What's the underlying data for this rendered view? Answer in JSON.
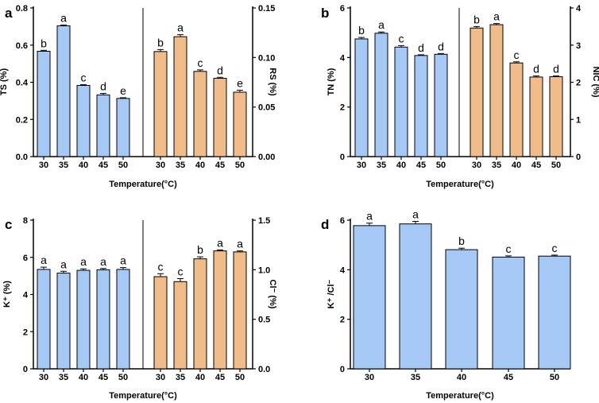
{
  "chart_data": [
    {
      "type": "bar",
      "panel_label": "a",
      "categories": [
        "30",
        "35",
        "40",
        "45",
        "50"
      ],
      "xlabel": "Temperature(°C)",
      "left": {
        "ylabel": "TS (%)",
        "ylim": [
          0,
          0.8
        ],
        "ticks": [
          "0.0",
          "0.2",
          "0.4",
          "0.6",
          "0.8"
        ],
        "tick_values": [
          0,
          0.2,
          0.4,
          0.6,
          0.8
        ],
        "values": [
          0.567,
          0.704,
          0.383,
          0.332,
          0.313
        ],
        "errors": [
          0.005,
          0.004,
          0.004,
          0.008,
          0.004
        ],
        "letters": [
          "b",
          "a",
          "c",
          "d",
          "e"
        ]
      },
      "right": {
        "ylabel": "RS (%)",
        "ylim": [
          0,
          0.15
        ],
        "ticks": [
          "0.00",
          "0.05",
          "0.10",
          "0.15"
        ],
        "tick_values": [
          0,
          0.05,
          0.1,
          0.15
        ],
        "values": [
          0.106,
          0.121,
          0.086,
          0.079,
          0.065
        ],
        "errors": [
          0.002,
          0.002,
          0.0015,
          0.001,
          0.002
        ],
        "letters": [
          "b",
          "a",
          "c",
          "d",
          "e"
        ]
      }
    },
    {
      "type": "bar",
      "panel_label": "b",
      "categories": [
        "30",
        "35",
        "40",
        "45",
        "50"
      ],
      "xlabel": "Temperature(°C)",
      "left": {
        "ylabel": "TN (%)",
        "ylim": [
          0,
          6
        ],
        "ticks": [
          "0",
          "2",
          "4",
          "6"
        ],
        "tick_values": [
          0,
          2,
          4,
          6
        ],
        "values": [
          4.75,
          4.98,
          4.42,
          4.08,
          4.13
        ],
        "errors": [
          0.06,
          0.05,
          0.06,
          0.03,
          0.03
        ],
        "letters": [
          "b",
          "a",
          "c",
          "d",
          "d"
        ]
      },
      "right": {
        "ylabel": "NIC (%)",
        "ylim": [
          0,
          4
        ],
        "ticks": [
          "0",
          "1",
          "2",
          "3",
          "4"
        ],
        "tick_values": [
          0,
          1,
          2,
          3,
          4
        ],
        "values": [
          3.46,
          3.55,
          2.52,
          2.14,
          2.15
        ],
        "errors": [
          0.04,
          0.03,
          0.03,
          0.03,
          0.02
        ],
        "letters": [
          "b",
          "a",
          "c",
          "d",
          "d"
        ]
      }
    },
    {
      "type": "bar",
      "panel_label": "c",
      "categories": [
        "30",
        "35",
        "40",
        "45",
        "50"
      ],
      "xlabel": "Temperature(°C)",
      "left": {
        "ylabel": "K⁺ (%)",
        "ylim": [
          0,
          8
        ],
        "ticks": [
          "0",
          "2",
          "4",
          "6",
          "8"
        ],
        "tick_values": [
          0,
          2,
          4,
          6,
          8
        ],
        "values": [
          5.35,
          5.15,
          5.3,
          5.33,
          5.35
        ],
        "errors": [
          0.12,
          0.1,
          0.08,
          0.07,
          0.1
        ],
        "letters": [
          "a",
          "a",
          "a",
          "a",
          "a"
        ]
      },
      "right": {
        "ylabel": "Cl⁻ (%)",
        "ylim": [
          0,
          1.5
        ],
        "ticks": [
          "0.0",
          "0.5",
          "1.0",
          "1.5"
        ],
        "tick_values": [
          0,
          0.5,
          1.0,
          1.5
        ],
        "values": [
          0.93,
          0.88,
          1.11,
          1.19,
          1.18
        ],
        "errors": [
          0.03,
          0.03,
          0.02,
          0.01,
          0.01
        ],
        "letters": [
          "c",
          "c",
          "b",
          "a",
          "a"
        ]
      }
    },
    {
      "type": "bar",
      "panel_label": "d",
      "categories": [
        "30",
        "35",
        "40",
        "45",
        "50"
      ],
      "xlabel": "Temperature(°C)",
      "left": {
        "ylabel": "K⁺ /Cl⁻",
        "ylim": [
          0,
          6
        ],
        "ticks": [
          "0",
          "2",
          "4",
          "6"
        ],
        "tick_values": [
          0,
          2,
          4,
          6
        ],
        "values": [
          5.78,
          5.85,
          4.81,
          4.51,
          4.55
        ],
        "errors": [
          0.1,
          0.1,
          0.06,
          0.05,
          0.04
        ],
        "letters": [
          "a",
          "a",
          "b",
          "c",
          "c"
        ]
      }
    }
  ],
  "colors": {
    "left_bar": "#a5c8f4",
    "right_bar": "#f0bd8a",
    "axis": "#000000"
  }
}
